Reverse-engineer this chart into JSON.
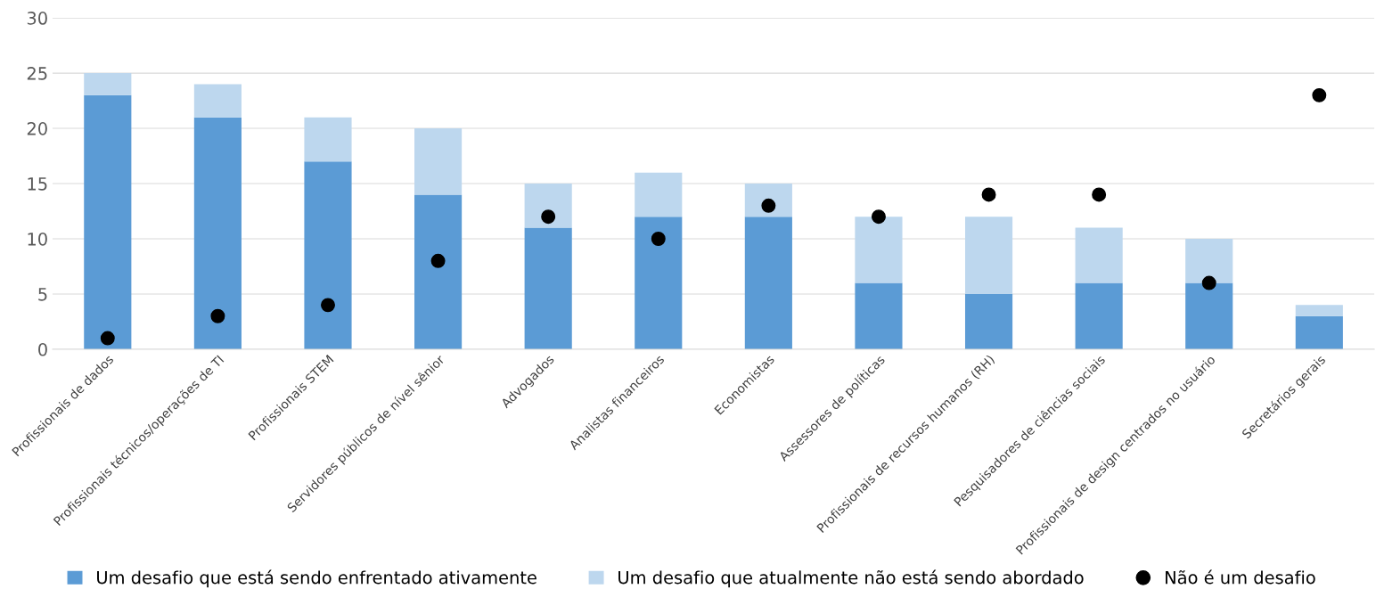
{
  "chart_data": {
    "type": "bar",
    "stacked": true,
    "categories": [
      "Profissionais de dados",
      "Profissionais técnicos/operações de TI",
      "Profissionais STEM",
      "Servidores públicos de nível sênior",
      "Advogados",
      "Analistas financeiros",
      "Economistas",
      "Assessores de políticas",
      "Profissionais de recursos humanos (RH)",
      "Pesquisadores de ciências sociais",
      "Profissionais de design centrados no usuário",
      "Secretários gerais"
    ],
    "series": [
      {
        "name": "Um desafio que está sendo enfrentado ativamente",
        "color": "#5b9bd5",
        "values": [
          23,
          21,
          17,
          14,
          11,
          12,
          12,
          6,
          5,
          6,
          6,
          3
        ]
      },
      {
        "name": "Um desafio que atualmente não está sendo abordado",
        "color": "#bdd7ee",
        "values": [
          2,
          3,
          4,
          6,
          4,
          4,
          3,
          6,
          7,
          5,
          4,
          1
        ]
      },
      {
        "name": "Não é um desafio",
        "type": "scatter",
        "color": "#000000",
        "marker": "circle",
        "x": [
          "Profissionais de dados",
          "Profissionais técnicos/operações de TI",
          "Profissionais STEM",
          "Servidores públicos de nível sênior",
          "Advogados",
          "Analistas financeiros",
          "Economistas",
          "Assessores de políticas",
          "Profissionais de recursos humanos (RH)",
          "Pesquisadores de ciências sociais",
          "Profissionais de design centrados no usuário",
          "Secretários gerais"
        ],
        "values": [
          1,
          3,
          4,
          8,
          12,
          10,
          13,
          12,
          14,
          14,
          6,
          23
        ]
      }
    ],
    "ylim": [
      0,
      30
    ],
    "yticks": [
      0,
      5,
      10,
      15,
      20,
      25,
      30
    ],
    "grid": "y",
    "legend": "bottom"
  }
}
